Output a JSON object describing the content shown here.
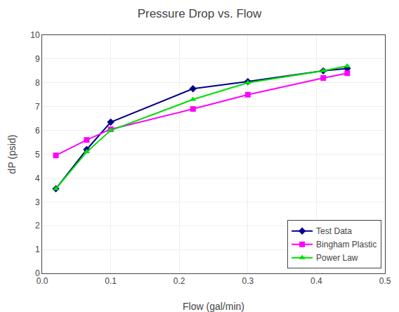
{
  "chart_data": {
    "type": "line",
    "title": "Pressure Drop vs. Flow",
    "x_label": "Flow (gal/min)",
    "y_label": "dP (psid)",
    "x": [
      0.02,
      0.065,
      0.1,
      0.22,
      0.3,
      0.41,
      0.445
    ],
    "series": [
      {
        "name": "Test Data",
        "color": "#00008B",
        "marker": "diamond",
        "values": [
          3.55,
          5.2,
          6.35,
          7.75,
          8.05,
          8.5,
          8.6
        ]
      },
      {
        "name": "Bingham Plastic",
        "color": "#FF00FF",
        "marker": "square",
        "values": [
          4.95,
          5.6,
          6.05,
          6.9,
          7.5,
          8.2,
          8.4
        ]
      },
      {
        "name": "Power Law",
        "color": "#00DD00",
        "marker": "triangle",
        "values": [
          3.55,
          5.1,
          6.0,
          7.3,
          8.0,
          8.5,
          8.7
        ]
      }
    ],
    "xlim": [
      0,
      0.5
    ],
    "ylim": [
      0,
      10
    ],
    "xticks": [
      {
        "value": 0,
        "label": "0.0"
      },
      0.1,
      0.2,
      0.3,
      0.4,
      0.5
    ],
    "yticks": [
      0,
      1,
      2,
      3,
      4,
      5,
      6,
      7,
      8,
      9,
      10
    ],
    "grid": true,
    "legend": "lower right"
  }
}
